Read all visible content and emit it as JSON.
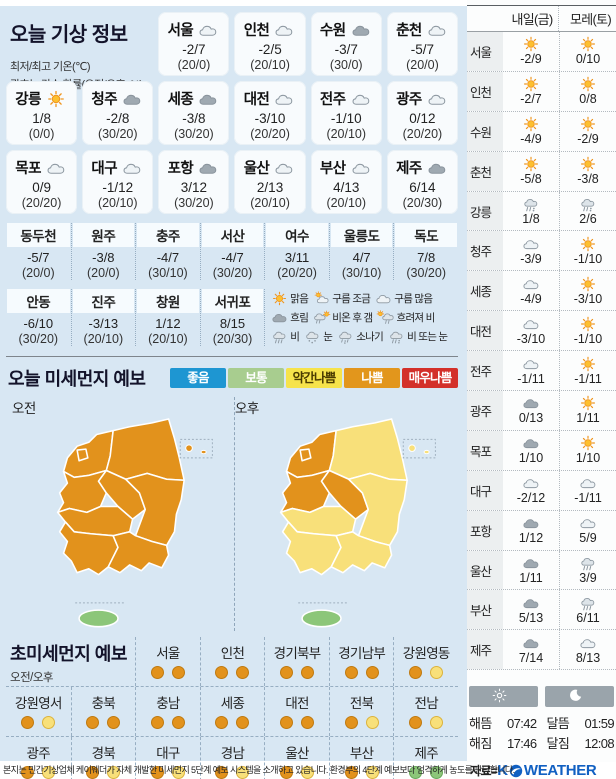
{
  "page": {
    "title_today": "오늘 기상 정보",
    "note1": "최저/최고 기온(℃)",
    "note2": "괄호는 강수 확률(오전/오후, %)",
    "bottom_note": "본지는 민간기상업체 케이웨더가 자체 개발한 미세먼지 5단계 예보 시스템을 소개하고 있습니다. 환경부의 4단계 예보보다 엄격하게 농도를 판단합니다."
  },
  "today": {
    "row1": [
      {
        "name": "서울",
        "icon": "mostly-cloudy",
        "temp": "-2/7",
        "prob": "(20/0)"
      },
      {
        "name": "인천",
        "icon": "mostly-cloudy",
        "temp": "-2/5",
        "prob": "(20/10)"
      },
      {
        "name": "수원",
        "icon": "overcast",
        "temp": "-3/7",
        "prob": "(30/0)"
      },
      {
        "name": "춘천",
        "icon": "mostly-cloudy",
        "temp": "-5/7",
        "prob": "(20/0)"
      }
    ],
    "row2": [
      {
        "name": "강릉",
        "icon": "sunny",
        "temp": "1/8",
        "prob": "(0/0)"
      },
      {
        "name": "청주",
        "icon": "overcast",
        "temp": "-2/8",
        "prob": "(30/20)"
      },
      {
        "name": "세종",
        "icon": "overcast",
        "temp": "-3/8",
        "prob": "(30/20)"
      },
      {
        "name": "대전",
        "icon": "mostly-cloudy",
        "temp": "-3/10",
        "prob": "(20/20)"
      },
      {
        "name": "전주",
        "icon": "mostly-cloudy",
        "temp": "-1/10",
        "prob": "(20/10)"
      },
      {
        "name": "광주",
        "icon": "mostly-cloudy",
        "temp": "0/12",
        "prob": "(20/20)"
      }
    ],
    "row3": [
      {
        "name": "목포",
        "icon": "mostly-cloudy",
        "temp": "0/9",
        "prob": "(20/20)"
      },
      {
        "name": "대구",
        "icon": "mostly-cloudy",
        "temp": "-1/12",
        "prob": "(20/10)"
      },
      {
        "name": "포항",
        "icon": "overcast",
        "temp": "3/12",
        "prob": "(30/20)"
      },
      {
        "name": "울산",
        "icon": "mostly-cloudy",
        "temp": "2/13",
        "prob": "(20/10)"
      },
      {
        "name": "부산",
        "icon": "mostly-cloudy",
        "temp": "4/13",
        "prob": "(20/10)"
      },
      {
        "name": "제주",
        "icon": "overcast",
        "temp": "6/14",
        "prob": "(20/30)"
      }
    ]
  },
  "small": {
    "row1": [
      {
        "name": "동두천",
        "temp": "-5/7",
        "prob": "(20/0)"
      },
      {
        "name": "원주",
        "temp": "-3/8",
        "prob": "(20/0)"
      },
      {
        "name": "충주",
        "temp": "-4/7",
        "prob": "(30/10)"
      },
      {
        "name": "서산",
        "temp": "-4/7",
        "prob": "(30/20)"
      },
      {
        "name": "여수",
        "temp": "3/11",
        "prob": "(20/20)"
      },
      {
        "name": "울릉도",
        "temp": "4/7",
        "prob": "(30/10)"
      },
      {
        "name": "독도",
        "temp": "7/8",
        "prob": "(30/20)"
      }
    ],
    "row2": [
      {
        "name": "안동",
        "temp": "-6/10",
        "prob": "(30/20)"
      },
      {
        "name": "진주",
        "temp": "-3/13",
        "prob": "(20/10)"
      },
      {
        "name": "창원",
        "temp": "1/12",
        "prob": "(20/10)"
      },
      {
        "name": "서귀포",
        "temp": "8/15",
        "prob": "(20/30)"
      }
    ]
  },
  "legend": {
    "line1": [
      {
        "icon": "sunny",
        "label": "맑음"
      },
      {
        "icon": "partly",
        "label": "구름 조금"
      },
      {
        "icon": "mostly-cloudy",
        "label": "구름 많음"
      }
    ],
    "line2": [
      {
        "icon": "overcast",
        "label": "흐림"
      },
      {
        "icon": "rain-then-clear",
        "label": "비온 후 갬"
      },
      {
        "icon": "cloudy-then-rain",
        "label": "흐려져 비"
      }
    ],
    "line3": [
      {
        "icon": "rain",
        "label": "비"
      },
      {
        "icon": "snow",
        "label": "눈"
      },
      {
        "icon": "shower",
        "label": "소나기"
      },
      {
        "icon": "rain-or-snow",
        "label": "비 또는 눈"
      }
    ]
  },
  "dust": {
    "title": "오늘 미세먼지 예보",
    "am_label": "오전",
    "pm_label": "오후",
    "legend": [
      {
        "label": "좋음",
        "color": "#1e96d2",
        "text": "#ffffff"
      },
      {
        "label": "보통",
        "color": "#a8cd8f",
        "text": "#ffffff"
      },
      {
        "label": "약간나쁨",
        "color": "#f6e34b",
        "text": "#4a3b00"
      },
      {
        "label": "나쁨",
        "color": "#e2961c",
        "text": "#ffffff"
      },
      {
        "label": "매우나쁨",
        "color": "#d3302a",
        "text": "#ffffff"
      }
    ],
    "level_colors": {
      "bad": {
        "fill": "#e2921c",
        "border": "#bf7a10"
      },
      "slightly-bad": {
        "fill": "#f8e07a",
        "border": "#dcb33c"
      },
      "normal": {
        "fill": "#8cc679",
        "border": "#68a659"
      }
    },
    "maps": {
      "am": {
        "regions": {
          "gyeonggi": "bad",
          "seoul": "bad",
          "gangwon": "bad",
          "chungnam": "bad",
          "chungbuk": "bad",
          "gyeongbuk": "bad",
          "jeonbuk": "bad",
          "jeonnam": "bad",
          "gyeongnam": "bad",
          "jeju": "normal",
          "islands": "bad"
        }
      },
      "pm": {
        "regions": {
          "gyeonggi": "bad",
          "seoul": "bad",
          "gangwon": "slightly-bad",
          "chungnam": "bad",
          "chungbuk": "bad",
          "gyeongbuk": "slightly-bad",
          "jeonbuk": "slightly-bad",
          "jeonnam": "slightly-bad",
          "gyeongnam": "slightly-bad",
          "jeju": "normal",
          "islands": "slightly-bad"
        }
      }
    }
  },
  "ultra": {
    "title": "초미세먼지 예보",
    "sub": "오전/오후",
    "row1": [
      {
        "name": "서울",
        "am": "bad",
        "pm": "bad"
      },
      {
        "name": "인천",
        "am": "bad",
        "pm": "bad"
      },
      {
        "name": "경기북부",
        "am": "bad",
        "pm": "bad"
      },
      {
        "name": "경기남부",
        "am": "bad",
        "pm": "bad"
      },
      {
        "name": "강원영동",
        "am": "bad",
        "pm": "slightly-bad"
      }
    ],
    "row2": [
      {
        "name": "강원영서",
        "am": "bad",
        "pm": "slightly-bad"
      },
      {
        "name": "충북",
        "am": "bad",
        "pm": "bad"
      },
      {
        "name": "충남",
        "am": "bad",
        "pm": "bad"
      },
      {
        "name": "세종",
        "am": "bad",
        "pm": "bad"
      },
      {
        "name": "대전",
        "am": "bad",
        "pm": "bad"
      },
      {
        "name": "전북",
        "am": "bad",
        "pm": "slightly-bad"
      },
      {
        "name": "전남",
        "am": "bad",
        "pm": "slightly-bad"
      }
    ],
    "row3": [
      {
        "name": "광주",
        "am": "bad",
        "pm": "slightly-bad"
      },
      {
        "name": "경북",
        "am": "bad",
        "pm": "slightly-bad"
      },
      {
        "name": "대구",
        "am": "bad",
        "pm": "slightly-bad"
      },
      {
        "name": "경남",
        "am": "bad",
        "pm": "slightly-bad"
      },
      {
        "name": "울산",
        "am": "bad",
        "pm": "slightly-bad"
      },
      {
        "name": "부산",
        "am": "bad",
        "pm": "slightly-bad"
      },
      {
        "name": "제주",
        "am": "normal",
        "pm": "normal"
      }
    ]
  },
  "forecast": {
    "col1": "내일(금)",
    "col2": "모레(토)",
    "rows": [
      {
        "name": "서울",
        "icon1": "sunny",
        "t1": "-2/9",
        "icon2": "sunny",
        "t2": "0/10"
      },
      {
        "name": "인천",
        "icon1": "sunny",
        "t1": "-2/7",
        "icon2": "sunny",
        "t2": "0/8"
      },
      {
        "name": "수원",
        "icon1": "sunny",
        "t1": "-4/9",
        "icon2": "sunny",
        "t2": "-2/9"
      },
      {
        "name": "춘천",
        "icon1": "sunny",
        "t1": "-5/8",
        "icon2": "sunny",
        "t2": "-3/8"
      },
      {
        "name": "강릉",
        "icon1": "rain-or-snow",
        "t1": "1/8",
        "icon2": "rain-or-snow",
        "t2": "2/6"
      },
      {
        "name": "청주",
        "icon1": "mostly-cloudy",
        "t1": "-3/9",
        "icon2": "sunny",
        "t2": "-1/10"
      },
      {
        "name": "세종",
        "icon1": "mostly-cloudy",
        "t1": "-4/9",
        "icon2": "sunny",
        "t2": "-3/10"
      },
      {
        "name": "대전",
        "icon1": "mostly-cloudy",
        "t1": "-3/10",
        "icon2": "sunny",
        "t2": "-1/10"
      },
      {
        "name": "전주",
        "icon1": "mostly-cloudy",
        "t1": "-1/11",
        "icon2": "sunny",
        "t2": "-1/11"
      },
      {
        "name": "광주",
        "icon1": "overcast",
        "t1": "0/13",
        "icon2": "sunny",
        "t2": "1/11"
      },
      {
        "name": "목포",
        "icon1": "overcast",
        "t1": "1/10",
        "icon2": "sunny",
        "t2": "1/10"
      },
      {
        "name": "대구",
        "icon1": "mostly-cloudy",
        "t1": "-2/12",
        "icon2": "mostly-cloudy",
        "t2": "-1/11"
      },
      {
        "name": "포항",
        "icon1": "overcast",
        "t1": "1/12",
        "icon2": "mostly-cloudy",
        "t2": "5/9"
      },
      {
        "name": "울산",
        "icon1": "overcast",
        "t1": "1/11",
        "icon2": "rain",
        "t2": "3/9"
      },
      {
        "name": "부산",
        "icon1": "overcast",
        "t1": "5/13",
        "icon2": "rain",
        "t2": "6/11"
      },
      {
        "name": "제주",
        "icon1": "overcast",
        "t1": "7/14",
        "icon2": "mostly-cloudy",
        "t2": "8/13"
      }
    ]
  },
  "sun_moon": {
    "sunrise_label": "해뜸",
    "sunrise": "07:42",
    "sunset_label": "해짐",
    "sunset": "17:46",
    "moonrise_label": "달뜸",
    "moonrise": "01:59",
    "moonset_label": "달짐",
    "moonset": "12:08"
  },
  "source": {
    "label": "자료=",
    "k": "K",
    "rest": "WEATHER"
  }
}
